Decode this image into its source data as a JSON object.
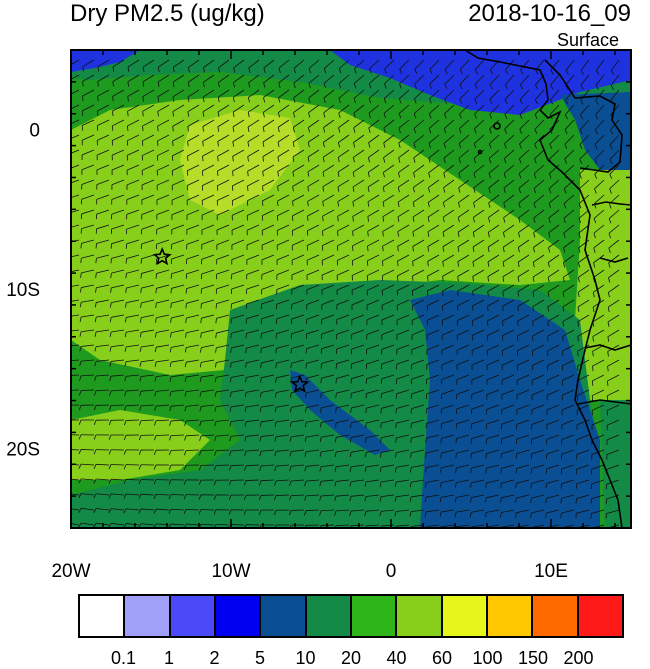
{
  "header": {
    "title": "Dry PM2.5 (ug/kg)",
    "datetime": "2018-10-16_09",
    "level": "Surface"
  },
  "map": {
    "lon_range": [
      -20,
      15
    ],
    "lat_range": [
      -25,
      5
    ],
    "x_ticks": [
      {
        "lon": -20,
        "label": "20W"
      },
      {
        "lon": -10,
        "label": "10W"
      },
      {
        "lon": 0,
        "label": "0"
      },
      {
        "lon": 10,
        "label": "10E"
      }
    ],
    "y_ticks": [
      {
        "lat": 0,
        "label": "0"
      },
      {
        "lat": -10,
        "label": "10S"
      },
      {
        "lat": -20,
        "label": "20S"
      }
    ],
    "markers": [
      {
        "name": "star-marker-1",
        "lon": -14.3,
        "lat": -8.0
      },
      {
        "name": "star-marker-2",
        "lon": -5.7,
        "lat": -16.0
      }
    ],
    "field_colors": {
      "bg": "#1e9a1e",
      "light": "#88cf1c",
      "lighter": "#b6dd28",
      "dark": "#138a46",
      "deep": "#0a4f93",
      "blue": "#1f32e0"
    }
  },
  "colorbar": {
    "colors": [
      "#fefefe",
      "#a0a0f8",
      "#4a4af8",
      "#0000f0",
      "#0a4f93",
      "#138a46",
      "#2db51a",
      "#88cf1c",
      "#e6f61a",
      "#ffc800",
      "#ff6a00",
      "#ff1a1a"
    ],
    "labels": [
      "0.1",
      "1",
      "2",
      "5",
      "10",
      "20",
      "40",
      "60",
      "100",
      "150",
      "200"
    ]
  }
}
